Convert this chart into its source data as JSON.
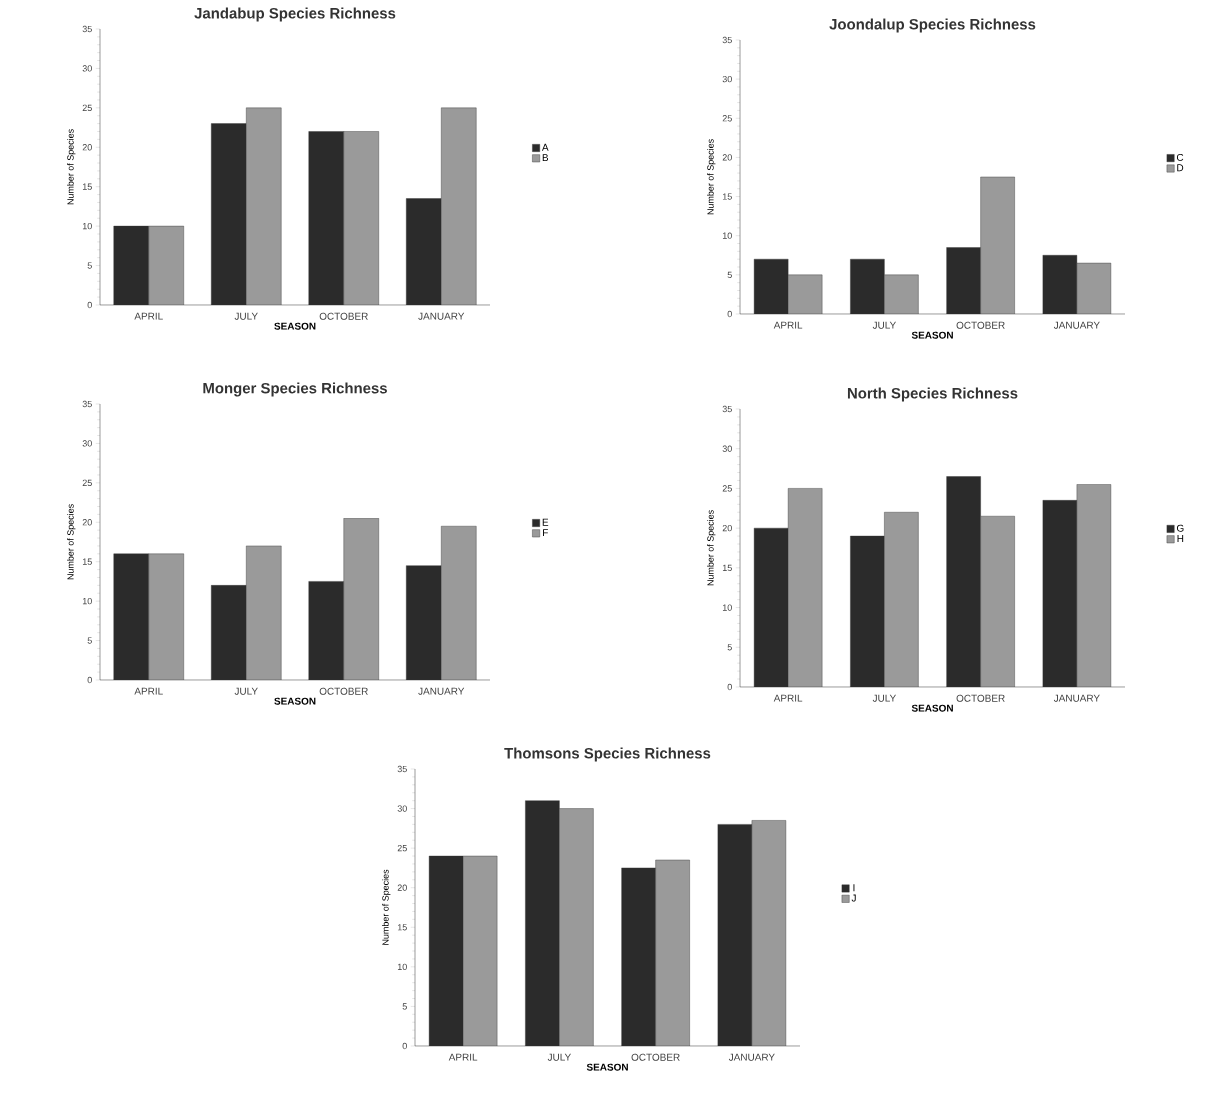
{
  "chart_data": [
    {
      "type": "bar",
      "title": "Jandabup Species Richness",
      "xlabel": "SEASON",
      "ylabel": "Number of Species",
      "categories": [
        "APRIL",
        "JULY",
        "OCTOBER",
        "JANUARY"
      ],
      "series": [
        {
          "name": "A",
          "color": "#2b2b2b",
          "values": [
            10,
            23,
            22,
            13.5
          ]
        },
        {
          "name": "B",
          "color": "#9a9a9a",
          "values": [
            10,
            25,
            22,
            25
          ]
        }
      ],
      "ylim": [
        0,
        35
      ],
      "yticks": [
        0,
        5,
        10,
        15,
        20,
        25,
        30,
        35
      ],
      "legend": "right",
      "grid": false
    },
    {
      "type": "bar",
      "title": "Joondalup Species Richness",
      "xlabel": "SEASON",
      "ylabel": "Number of Species",
      "categories": [
        "APRIL",
        "JULY",
        "OCTOBER",
        "JANUARY"
      ],
      "series": [
        {
          "name": "C",
          "color": "#2b2b2b",
          "values": [
            7,
            7,
            8.5,
            7.5
          ]
        },
        {
          "name": "D",
          "color": "#9a9a9a",
          "values": [
            5,
            5,
            17.5,
            6.5
          ]
        }
      ],
      "ylim": [
        0,
        35
      ],
      "yticks": [
        0,
        5,
        10,
        15,
        20,
        25,
        30,
        35
      ],
      "legend": "right",
      "grid": false
    },
    {
      "type": "bar",
      "title": "Monger Species Richness",
      "xlabel": "SEASON",
      "ylabel": "Number of Species",
      "categories": [
        "APRIL",
        "JULY",
        "OCTOBER",
        "JANUARY"
      ],
      "series": [
        {
          "name": "E",
          "color": "#2b2b2b",
          "values": [
            16,
            12,
            12.5,
            14.5
          ]
        },
        {
          "name": "F",
          "color": "#9a9a9a",
          "values": [
            16,
            17,
            20.5,
            19.5
          ]
        }
      ],
      "ylim": [
        0,
        35
      ],
      "yticks": [
        0,
        5,
        10,
        15,
        20,
        25,
        30,
        35
      ],
      "legend": "right",
      "grid": false
    },
    {
      "type": "bar",
      "title": "North Species Richness",
      "xlabel": "SEASON",
      "ylabel": "Number of Species",
      "categories": [
        "APRIL",
        "JULY",
        "OCTOBER",
        "JANUARY"
      ],
      "series": [
        {
          "name": "G",
          "color": "#2b2b2b",
          "values": [
            20,
            19,
            26.5,
            23.5
          ]
        },
        {
          "name": "H",
          "color": "#9a9a9a",
          "values": [
            25,
            22,
            21.5,
            25.5
          ]
        }
      ],
      "ylim": [
        0,
        35
      ],
      "yticks": [
        0,
        5,
        10,
        15,
        20,
        25,
        30,
        35
      ],
      "legend": "right",
      "grid": false
    },
    {
      "type": "bar",
      "title": "Thomsons Species Richness",
      "xlabel": "SEASON",
      "ylabel": "Number of Species",
      "categories": [
        "APRIL",
        "JULY",
        "OCTOBER",
        "JANUARY"
      ],
      "series": [
        {
          "name": "I",
          "color": "#2b2b2b",
          "values": [
            24,
            31,
            22.5,
            28
          ]
        },
        {
          "name": "J",
          "color": "#9a9a9a",
          "values": [
            24,
            30,
            23.5,
            28.5
          ]
        }
      ],
      "ylim": [
        0,
        35
      ],
      "yticks": [
        0,
        5,
        10,
        15,
        20,
        25,
        30,
        35
      ],
      "legend": "right",
      "grid": false
    }
  ]
}
